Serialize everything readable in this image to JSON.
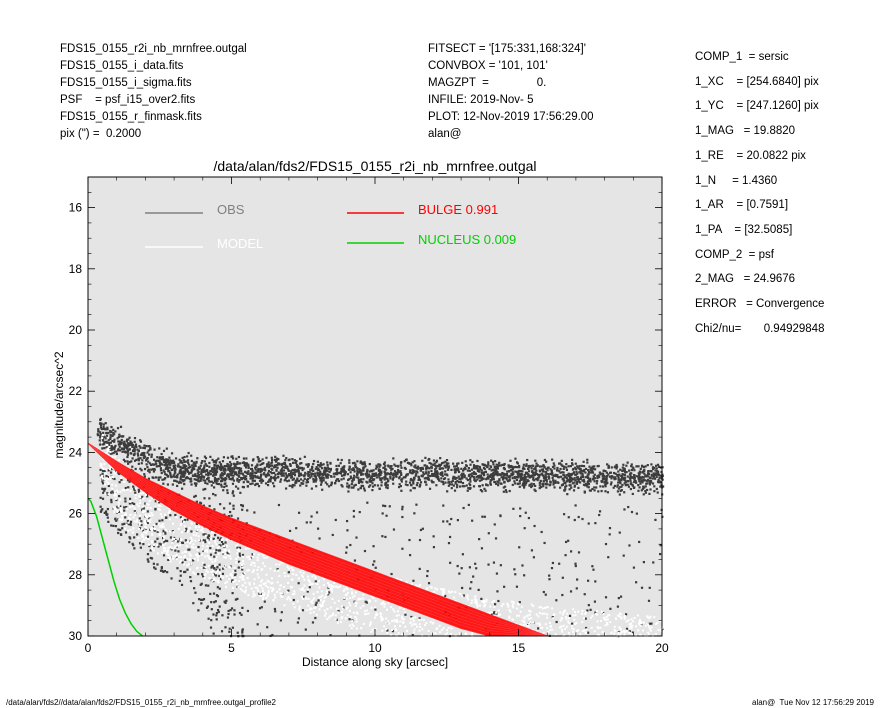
{
  "header_left": [
    "FDS15_0155_r2i_nb_mrnfree.outgal",
    "FDS15_0155_i_data.fits",
    "FDS15_0155_i_sigma.fits",
    "PSF    = psf_i15_over2.fits",
    "FDS15_0155_r_finmask.fits",
    "pix (\") =  0.2000"
  ],
  "header_mid": [
    "FITSECT = '[175:331,168:324]'",
    "CONVBOX = '101, 101'",
    "MAGZPT  =               0.",
    "INFILE: 2019-Nov- 5",
    "PLOT: 12-Nov-2019 17:56:29.00",
    "alan@"
  ],
  "components": [
    "COMP_1  = sersic",
    "1_XC    = [254.6840] pix",
    "1_YC    = [247.1260] pix",
    "1_MAG   = 19.8820",
    "1_RE    = 20.0822 pix",
    "1_N     = 1.4360",
    "1_AR    = [0.7591]",
    "1_PA    = [32.5085]",
    "",
    "COMP_2  = psf",
    "2_MAG   = 24.9676",
    "",
    "ERROR   = Convergence",
    "",
    "Chi2/nu=       0.94929848"
  ],
  "footer_left": "/data/alan/fds2//data/alan/fds2/FDS15_0155_r2i_nb_mrnfree.outgal_profile2",
  "footer_right": "alan@  Tue Nov 12 17:56:29 2019",
  "colors": {
    "plot_bg": "#e5e5e5",
    "obs": "#808080",
    "obs_points": "#3c3c3c",
    "model": "#ffffff",
    "bulge": "#ff0000",
    "nucleus": "#00d000"
  },
  "chart_data": {
    "type": "scatter",
    "title": "/data/alan/fds2/FDS15_0155_r2i_nb_mrnfree.outgal",
    "xlabel": "Distance along sky [arcsec]",
    "ylabel": "magnitude/arcsec^2",
    "xlim": [
      0,
      20
    ],
    "ylim": [
      30,
      15
    ],
    "y_reversed": true,
    "grid": false,
    "legend_position": "top",
    "x_ticks": [
      0,
      5,
      10,
      15,
      20
    ],
    "y_ticks": [
      16,
      18,
      20,
      22,
      24,
      26,
      28,
      30
    ],
    "x_tick_labels": [
      "0",
      "5",
      "10",
      "15",
      "20"
    ],
    "y_tick_labels": [
      "16",
      "18",
      "20",
      "22",
      "24",
      "26",
      "28",
      "30"
    ],
    "legend": {
      "obs": "OBS",
      "model": "MODEL",
      "bulge": "BULGE  0.991",
      "nucleus": "NUCLEUS  0.009"
    },
    "series": [
      {
        "name": "OBS",
        "kind": "points",
        "x": [
          0.5,
          1,
          2,
          3,
          4,
          5,
          6,
          7,
          8,
          9,
          10,
          11,
          12,
          13,
          14,
          15,
          16,
          17,
          18,
          19,
          20
        ],
        "y": [
          23.4,
          23.6,
          24.2,
          24.5,
          24.6,
          24.6,
          24.6,
          24.6,
          24.7,
          24.7,
          24.7,
          24.7,
          24.7,
          24.7,
          24.7,
          24.7,
          24.75,
          24.75,
          24.8,
          24.8,
          24.8
        ],
        "y_spread": 0.45
      },
      {
        "name": "MODEL",
        "kind": "points",
        "x": [
          0.5,
          1,
          2,
          3,
          4,
          5,
          6,
          7,
          8,
          9,
          10,
          11,
          12,
          13,
          14,
          15,
          16,
          17,
          18,
          19,
          20
        ],
        "y": [
          24.0,
          24.8,
          25.6,
          26.2,
          26.6,
          27.0,
          27.3,
          27.6,
          27.9,
          28.2,
          28.5,
          28.8,
          29.0,
          29.2,
          29.4,
          29.5,
          29.6,
          29.7,
          29.8,
          29.9,
          30.0
        ],
        "y_spread": 1.5
      },
      {
        "name": "BULGE  0.991",
        "kind": "band",
        "x": [
          0,
          1,
          2,
          3,
          4,
          5,
          6,
          7,
          8,
          9,
          10,
          11,
          12,
          13,
          14,
          15,
          16
        ],
        "y_upper": [
          23.7,
          24.3,
          24.85,
          25.3,
          25.75,
          26.15,
          26.5,
          26.85,
          27.2,
          27.55,
          27.9,
          28.25,
          28.6,
          28.95,
          29.3,
          29.65,
          30.0
        ],
        "y_lower": [
          23.7,
          24.6,
          25.3,
          25.9,
          26.4,
          26.85,
          27.25,
          27.65,
          28.0,
          28.35,
          28.7,
          29.05,
          29.4,
          29.75,
          30.0,
          30.0,
          30.0
        ]
      },
      {
        "name": "NUCLEUS  0.009",
        "kind": "line",
        "x": [
          0,
          0.1,
          0.3,
          0.5,
          0.7,
          0.9,
          1.1,
          1.3,
          1.5,
          1.7,
          1.9
        ],
        "y": [
          25.5,
          25.6,
          26.1,
          26.8,
          27.5,
          28.2,
          28.8,
          29.25,
          29.6,
          29.85,
          30.0
        ]
      }
    ]
  }
}
